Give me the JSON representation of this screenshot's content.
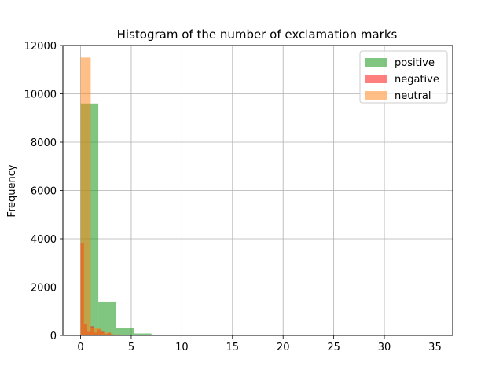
{
  "chart_data": {
    "type": "bar",
    "title": "Histogram of the number of exclamation marks",
    "xlabel": "",
    "ylabel": "Frequency",
    "xlim": [
      -1.75,
      36.75
    ],
    "ylim": [
      0,
      12000
    ],
    "xticks": [
      0,
      5,
      10,
      15,
      20,
      25,
      30,
      35
    ],
    "xtick_labels": [
      "0",
      "5",
      "10",
      "15",
      "20",
      "25",
      "30",
      "35"
    ],
    "yticks": [
      0,
      2000,
      4000,
      6000,
      8000,
      10000,
      12000
    ],
    "ytick_labels": [
      "0",
      "2000",
      "4000",
      "6000",
      "8000",
      "10000",
      "12000"
    ],
    "grid": true,
    "legend_position": "top-right",
    "series": [
      {
        "name": "positive",
        "color": "#2ca02c",
        "alpha": 0.6,
        "bins": [
          {
            "x0": 0.0,
            "x1": 1.75,
            "value": 9600
          },
          {
            "x0": 1.75,
            "x1": 3.5,
            "value": 1400
          },
          {
            "x0": 3.5,
            "x1": 5.25,
            "value": 300
          },
          {
            "x0": 5.25,
            "x1": 7.0,
            "value": 80
          },
          {
            "x0": 7.0,
            "x1": 8.75,
            "value": 25
          },
          {
            "x0": 8.75,
            "x1": 10.5,
            "value": 10
          },
          {
            "x0": 10.5,
            "x1": 12.25,
            "value": 4
          },
          {
            "x0": 12.25,
            "x1": 14.0,
            "value": 2
          }
        ]
      },
      {
        "name": "negative",
        "color": "#ff0000",
        "alpha": 0.5,
        "bins": [
          {
            "x0": 0.0,
            "x1": 0.33,
            "value": 3800
          },
          {
            "x0": 0.33,
            "x1": 0.66,
            "value": 450
          },
          {
            "x0": 0.66,
            "x1": 1.0,
            "value": 150
          },
          {
            "x0": 1.0,
            "x1": 1.33,
            "value": 380
          },
          {
            "x0": 1.33,
            "x1": 1.66,
            "value": 120
          },
          {
            "x0": 1.66,
            "x1": 2.0,
            "value": 250
          },
          {
            "x0": 2.0,
            "x1": 2.33,
            "value": 150
          },
          {
            "x0": 2.33,
            "x1": 2.66,
            "value": 60
          },
          {
            "x0": 2.66,
            "x1": 3.0,
            "value": 110
          },
          {
            "x0": 3.0,
            "x1": 3.33,
            "value": 40
          },
          {
            "x0": 3.33,
            "x1": 3.66,
            "value": 20
          }
        ]
      },
      {
        "name": "neutral",
        "color": "#ff7f0e",
        "alpha": 0.5,
        "bins": [
          {
            "x0": 0.0,
            "x1": 1.0,
            "value": 11500
          },
          {
            "x0": 1.0,
            "x1": 2.0,
            "value": 300
          },
          {
            "x0": 2.0,
            "x1": 3.0,
            "value": 120
          },
          {
            "x0": 3.0,
            "x1": 4.0,
            "value": 40
          },
          {
            "x0": 4.0,
            "x1": 5.0,
            "value": 15
          }
        ]
      }
    ]
  }
}
